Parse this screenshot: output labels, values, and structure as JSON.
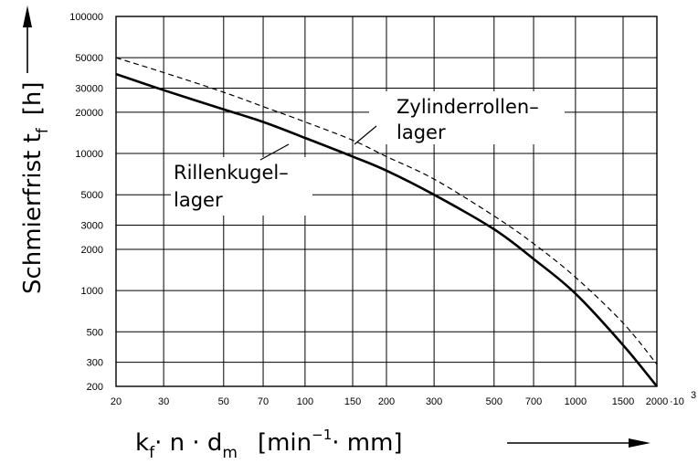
{
  "chart_data": {
    "type": "line",
    "scale": {
      "x": "log",
      "y": "log"
    },
    "xlim": [
      20,
      2000
    ],
    "ylim": [
      200,
      100000
    ],
    "grid": true,
    "ylabel": {
      "main": "Schmierfrist t",
      "sub": "f",
      "unit": "[h]"
    },
    "xlabel": {
      "k": "k",
      "k_sub": "f",
      "n": "· n · d",
      "d_sub": "m",
      "unit_open": "[min",
      "unit_sup": "−1",
      "unit_close": "· mm]"
    },
    "x_ticks": [
      "20",
      "30",
      "50",
      "70",
      "100",
      "150",
      "200",
      "300",
      "500",
      "700",
      "1000",
      "1500",
      "2000"
    ],
    "x_tick_values": [
      20,
      30,
      50,
      70,
      100,
      150,
      200,
      300,
      500,
      700,
      1000,
      1500,
      2000
    ],
    "x_multiplier": "·10",
    "x_multiplier_exp": "3",
    "y_ticks": [
      "200",
      "300",
      "500",
      "1000",
      "2000",
      "3000",
      "5000",
      "10000",
      "20000",
      "30000",
      "50000",
      "100000"
    ],
    "y_tick_values": [
      200,
      300,
      500,
      1000,
      2000,
      3000,
      5000,
      10000,
      20000,
      30000,
      50000,
      100000
    ],
    "series": [
      {
        "label": [
          "Rillenkugel–",
          "lager"
        ],
        "style": "solid",
        "x": [
          20,
          30,
          50,
          70,
          100,
          150,
          200,
          300,
          500,
          700,
          1000,
          1500,
          2000
        ],
        "y": [
          38000,
          29000,
          21000,
          17000,
          13000,
          9500,
          7500,
          5000,
          2800,
          1700,
          950,
          400,
          200
        ]
      },
      {
        "label": [
          "Zylinderrollen–",
          "lager"
        ],
        "style": "dashed",
        "x": [
          20,
          30,
          50,
          70,
          100,
          150,
          200,
          300,
          500,
          700,
          1000,
          1500,
          2000
        ],
        "y": [
          50000,
          39000,
          28000,
          22000,
          17000,
          12500,
          9500,
          6500,
          3500,
          2200,
          1250,
          580,
          290
        ]
      }
    ]
  }
}
